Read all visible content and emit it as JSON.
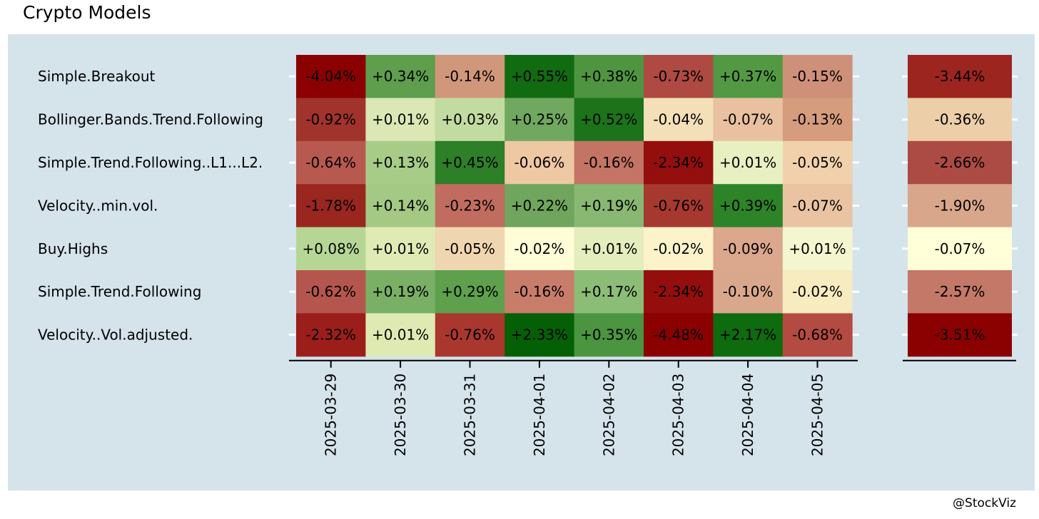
{
  "title": "Crypto Models",
  "credit": "@StockViz",
  "chart_data": {
    "type": "heatmap",
    "title": "Crypto Models",
    "rows": [
      "Simple.Breakout",
      "Bollinger.Bands.Trend.Following",
      "Simple.Trend.Following..L1...L2.",
      "Velocity..min.vol.",
      "Buy.Highs",
      "Simple.Trend.Following",
      "Velocity..Vol.adjusted."
    ],
    "columns": [
      "2025-03-29",
      "2025-03-30",
      "2025-03-31",
      "2025-04-01",
      "2025-04-02",
      "2025-04-03",
      "2025-04-04",
      "2025-04-05"
    ],
    "values": [
      [
        -4.04,
        0.34,
        -0.14,
        0.55,
        0.38,
        -0.73,
        0.37,
        -0.15
      ],
      [
        -0.92,
        0.01,
        0.03,
        0.25,
        0.52,
        -0.04,
        -0.07,
        -0.13
      ],
      [
        -0.64,
        0.13,
        0.45,
        -0.06,
        -0.16,
        -2.34,
        0.01,
        -0.05
      ],
      [
        -1.78,
        0.14,
        -0.23,
        0.22,
        0.19,
        -0.76,
        0.39,
        -0.07
      ],
      [
        0.08,
        0.01,
        -0.05,
        -0.02,
        0.01,
        -0.02,
        -0.09,
        0.01
      ],
      [
        -0.62,
        0.19,
        0.29,
        -0.16,
        0.17,
        -2.34,
        -0.1,
        -0.02
      ],
      [
        -2.32,
        0.01,
        -0.76,
        2.33,
        0.35,
        -4.48,
        2.17,
        -0.68
      ]
    ],
    "labels": [
      [
        "-4.04%",
        "+0.34%",
        "-0.14%",
        "+0.55%",
        "+0.38%",
        "-0.73%",
        "+0.37%",
        "-0.15%"
      ],
      [
        "-0.92%",
        "+0.01%",
        "+0.03%",
        "+0.25%",
        "+0.52%",
        "-0.04%",
        "-0.07%",
        "-0.13%"
      ],
      [
        "-0.64%",
        "+0.13%",
        "+0.45%",
        "-0.06%",
        "-0.16%",
        "-2.34%",
        "+0.01%",
        "-0.05%"
      ],
      [
        "-1.78%",
        "+0.14%",
        "-0.23%",
        "+0.22%",
        "+0.19%",
        "-0.76%",
        "+0.39%",
        "-0.07%"
      ],
      [
        "+0.08%",
        "+0.01%",
        "-0.05%",
        "-0.02%",
        "+0.01%",
        "-0.02%",
        "-0.09%",
        "+0.01%"
      ],
      [
        "-0.62%",
        "+0.19%",
        "+0.29%",
        "-0.16%",
        "+0.17%",
        "-2.34%",
        "-0.10%",
        "-0.02%"
      ],
      [
        "-2.32%",
        "+0.01%",
        "-0.76%",
        "+2.33%",
        "+0.35%",
        "-4.48%",
        "+2.17%",
        "-0.68%"
      ]
    ],
    "colors": [
      [
        "#8b0000",
        "#5e9e4c",
        "#d1977b",
        "#116b11",
        "#4f9541",
        "#ae4a41",
        "#539944",
        "#cf907a"
      ],
      [
        "#a0332c",
        "#dbe7b4",
        "#c2dba0",
        "#70a85f",
        "#1c731a",
        "#f3dfb8",
        "#e9c1a0",
        "#d69c7e"
      ],
      [
        "#b8594f",
        "#a7cc88",
        "#2d7f28",
        "#eec7a3",
        "#c37464",
        "#940e0e",
        "#e8f0c2",
        "#f1d1ac"
      ],
      [
        "#9a2620",
        "#a3c985",
        "#c06d5f",
        "#6fa55d",
        "#89b873",
        "#a6392f",
        "#2d8428",
        "#eac4a2"
      ],
      [
        "#b6d695",
        "#e0eab5",
        "#f0d6b0",
        "#fffcd8",
        "#e4edbc",
        "#fdf3cb",
        "#dba78d",
        "#f4f6cf"
      ],
      [
        "#b4564d",
        "#7ab066",
        "#5ea04c",
        "#c87d6b",
        "#8cbd77",
        "#940e0e",
        "#d9a88c",
        "#f7ebc0"
      ],
      [
        "#9c1e1a",
        "#dfeab2",
        "#a9372e",
        "#056005",
        "#4b9540",
        "#8b0000",
        "#0e6b0e",
        "#b44b42"
      ]
    ],
    "summary_values": [
      -3.44,
      -0.36,
      -2.66,
      -1.9,
      -0.07,
      -2.57,
      -3.51
    ],
    "summary_labels": [
      "-3.44%",
      "-0.36%",
      "-2.66%",
      "-1.90%",
      "-0.07%",
      "-2.57%",
      "-3.51%"
    ],
    "summary_colors": [
      "#9d2520",
      "#eccfa8",
      "#ab4b43",
      "#d8a68a",
      "#ffffd8",
      "#c37868",
      "#8b0000"
    ],
    "grid": false,
    "legend": "none"
  }
}
